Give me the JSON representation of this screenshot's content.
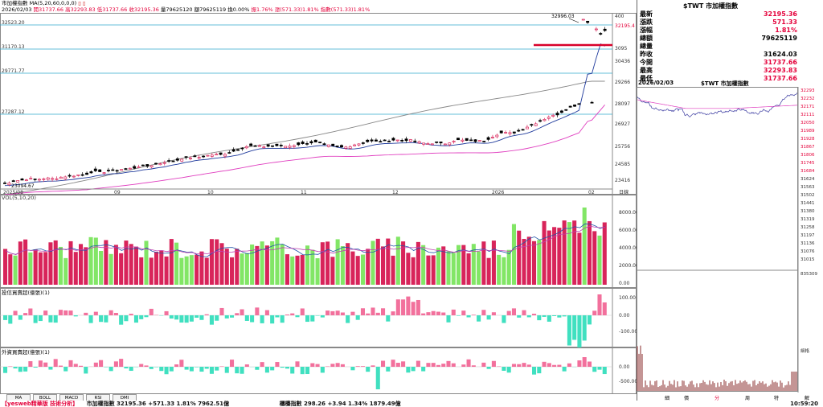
{
  "header": {
    "title": "市加權指數",
    "indicator": "MA(5,20,60,0,0,0)",
    "date": "2026/02/03",
    "open": "開31737.66",
    "high": "高32293.83",
    "low": "低31737.66",
    "close": "收32195.36",
    "volume": "量79625120",
    "amount": "額79625119",
    "turnover": "換0.00%",
    "amplitude": "振1.76%",
    "change": "漲(571.33)1.81%",
    "index_change": "指數(571.33)1.81%"
  },
  "main_chart": {
    "hlines": [
      "32523.20",
      "31170.13",
      "29771.77",
      "27287.12"
    ],
    "yaxis": [
      "32195.4",
      "3095",
      "30436",
      "29266",
      "28097",
      "26927",
      "25756",
      "24585",
      "23416"
    ],
    "yaxis_top": "400",
    "peak_label": "32996.03",
    "low_label": "23094.67",
    "xaxis": [
      "2025/08",
      "09",
      "10",
      "11",
      "12",
      "2026",
      "02"
    ],
    "unit_label": "日線"
  },
  "vol_panel": {
    "title": "VOL(5,10,20)",
    "yaxis": [
      "8000.00",
      "6000.00",
      "4000.00",
      "2000.00",
      "0.00"
    ]
  },
  "ind1": {
    "title": "投信買賣超(億張)(1)",
    "yaxis": [
      "100.00",
      "0.00",
      "-100.00"
    ]
  },
  "ind2": {
    "title": "外資買賣超(億張)(1)",
    "yaxis": [
      "0.00",
      "-500.00"
    ]
  },
  "tabs": [
    "MA",
    "BOLL",
    "MACD",
    "RSI",
    "DMI"
  ],
  "right_panel": {
    "title": "$TWT 市加權指數",
    "rows": [
      {
        "k": "最新",
        "v": "32195.36",
        "red": true
      },
      {
        "k": "漲跌",
        "v": "571.33",
        "red": true
      },
      {
        "k": "漲幅",
        "v": "1.81%",
        "red": true
      },
      {
        "k": "總額",
        "v": "79625119",
        "red": false
      },
      {
        "k": "總量",
        "v": "",
        "red": false
      },
      {
        "k": "昨收",
        "v": "31624.03",
        "red": false
      },
      {
        "k": "今開",
        "v": "31737.66",
        "red": true
      },
      {
        "k": "最高",
        "v": "32293.83",
        "red": true
      },
      {
        "k": "最低",
        "v": "31737.66",
        "red": true
      }
    ],
    "intraday_date": "2026/02/03",
    "intraday_title": "$TWT 市加權指數",
    "intraday_yaxis": [
      "32293",
      "32232",
      "32171",
      "32111",
      "32050",
      "31989",
      "31928",
      "31867",
      "31806",
      "31745",
      "31684",
      "31624",
      "31563",
      "31502",
      "31441",
      "31380",
      "31319",
      "31258",
      "31197",
      "31136",
      "31076",
      "31015"
    ],
    "vol_top": "835309",
    "bottom_tabs": [
      "細",
      "價",
      "分",
      "周",
      "特",
      "解"
    ],
    "vol_corner": "細格"
  },
  "status_bar": {
    "left": "【yesweb精華版 技術分析】",
    "index": "市加權指數 32195.36 +571.33 1.81% 7962.51億",
    "otc": "櫃檯指數 298.26 +3.94 1.34% 1879.49億",
    "time": "10:59:20"
  },
  "colors": {
    "up": "#d8245a",
    "down": "#000000",
    "vol_up": "#d8245a",
    "vol_down": "#82e666",
    "ma5": "#1f3a9c",
    "ma20": "#e040c0",
    "ma60": "#888888",
    "hline": "#33aacc",
    "ind_pos": "#f2709c",
    "ind_neg": "#40e0c0"
  }
}
